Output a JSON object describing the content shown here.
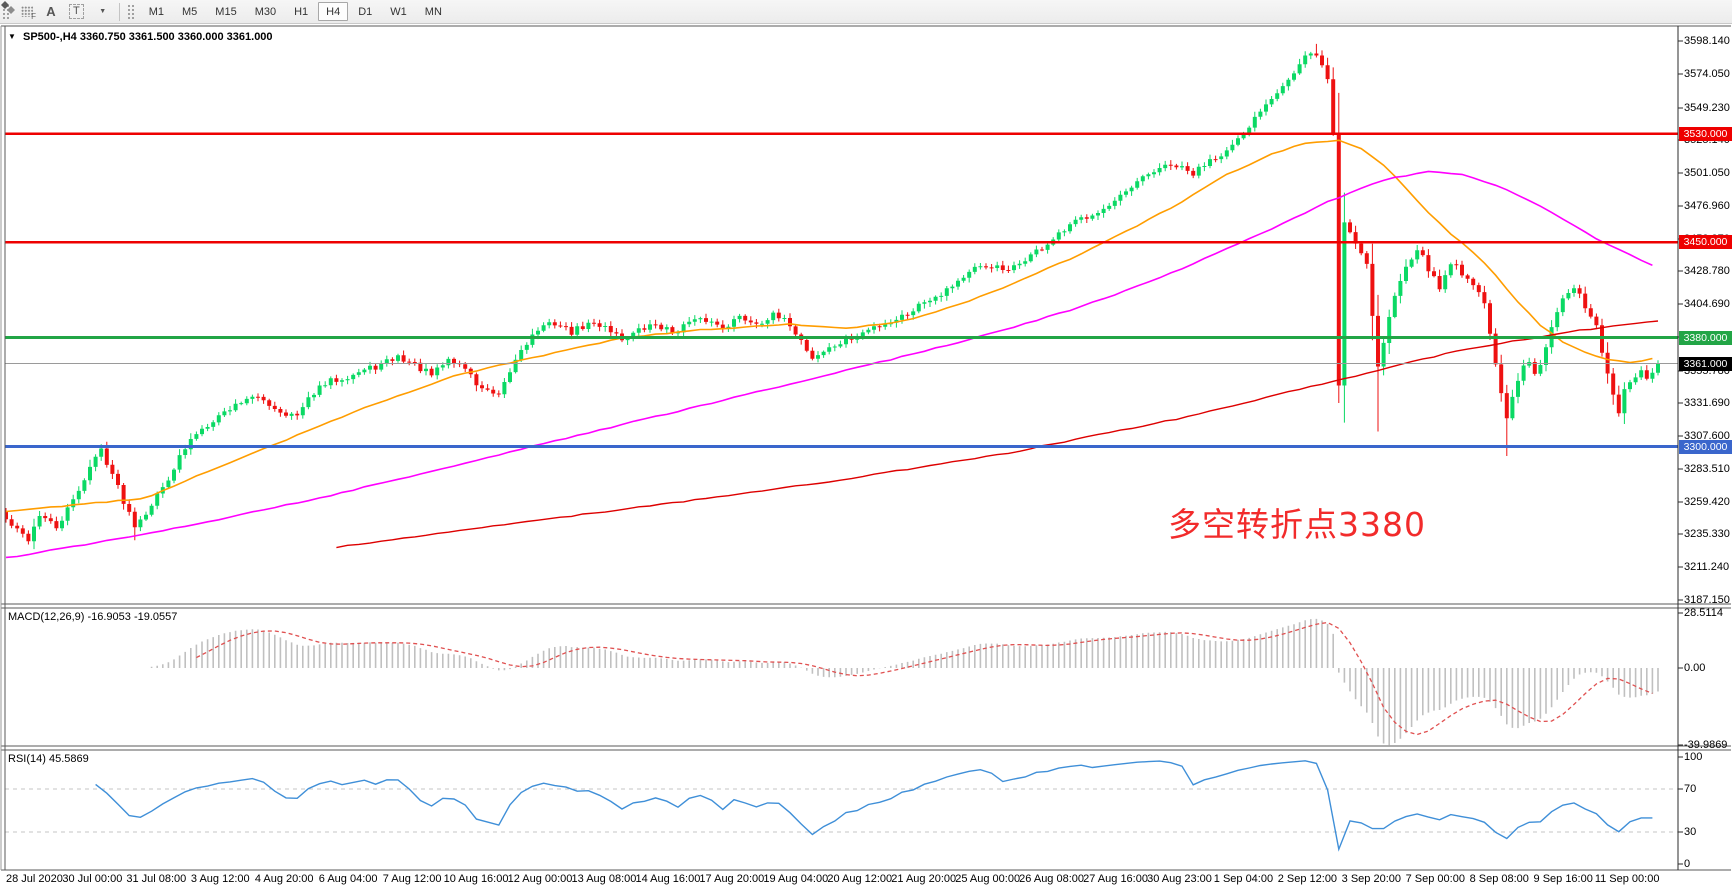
{
  "toolbar": {
    "tool_icons": [
      {
        "name": "fibo-grid-icon",
        "glyph": "F"
      },
      {
        "name": "text-label-icon",
        "glyph": "A"
      },
      {
        "name": "text-tool-icon",
        "glyph": "T"
      },
      {
        "name": "arrows-tool-icon",
        "glyph": ""
      }
    ],
    "dropdown_caret": "▼",
    "timeframes": [
      {
        "label": "M1",
        "selected": false
      },
      {
        "label": "M5",
        "selected": false
      },
      {
        "label": "M15",
        "selected": false
      },
      {
        "label": "M30",
        "selected": false
      },
      {
        "label": "H1",
        "selected": false
      },
      {
        "label": "H4",
        "selected": true
      },
      {
        "label": "D1",
        "selected": false
      },
      {
        "label": "W1",
        "selected": false
      },
      {
        "label": "MN",
        "selected": false
      }
    ]
  },
  "chart": {
    "symbol_dropdown_glyph": "▼",
    "symbol": "SP500-,H4",
    "ohlc_text": "3360.750 3361.500 3360.000 3361.000"
  },
  "panels": {
    "macd_header": "MACD(12,26,9) -16.9053 -19.0557",
    "rsi_header": "RSI(14) 45.5869",
    "macd_ticks": [
      {
        "t": "28.5114",
        "v": 28.5114
      },
      {
        "t": "0.00",
        "v": 0
      },
      {
        "t": "-39.9869",
        "v": -39.9869
      }
    ],
    "rsi_ticks": [
      {
        "t": "100",
        "v": 100
      },
      {
        "t": "70",
        "v": 70
      },
      {
        "t": "30",
        "v": 30
      },
      {
        "t": "0",
        "v": 0
      }
    ]
  },
  "price_axis": {
    "ticks": [
      3598.14,
      3574.05,
      3549.23,
      3525.14,
      3501.05,
      3476.96,
      3452.87,
      3428.78,
      3404.69,
      3380.6,
      3355.78,
      3331.69,
      3307.6,
      3283.51,
      3259.42,
      3235.33,
      3211.24,
      3187.15
    ]
  },
  "levels": [
    {
      "value": 3530,
      "label": "3530.000",
      "color": "#ee0000",
      "width": 2.5
    },
    {
      "value": 3450,
      "label": "3450.000",
      "color": "#ee0000",
      "width": 2.5
    },
    {
      "value": 3380,
      "label": "3380.000",
      "color": "#22a546",
      "width": 3
    },
    {
      "value": 3300,
      "label": "3300.000",
      "color": "#3a66cc",
      "width": 3
    }
  ],
  "current_price": {
    "value": 3361,
    "label": "3361.000",
    "line_color": "#9a9a9a",
    "badge_bg": "#000000"
  },
  "annotation": {
    "text": "多空转折点3380",
    "color": "#f22b2b"
  },
  "time_axis": {
    "labels": [
      "28 Jul 2020",
      "30 Jul 00:00",
      "31 Jul 08:00",
      "3 Aug 12:00",
      "4 Aug 20:00",
      "6 Aug 04:00",
      "7 Aug 12:00",
      "10 Aug 16:00",
      "12 Aug 00:00",
      "13 Aug 08:00",
      "14 Aug 16:00",
      "17 Aug 20:00",
      "19 Aug 04:00",
      "20 Aug 12:00",
      "21 Aug 20:00",
      "25 Aug 00:00",
      "26 Aug 08:00",
      "27 Aug 16:00",
      "30 Aug 23:00",
      "1 Sep 04:00",
      "2 Sep 12:00",
      "3 Sep 20:00",
      "7 Sep 00:00",
      "8 Sep 08:00",
      "9 Sep 16:00",
      "11 Sep 00:00"
    ]
  },
  "chart_data": {
    "type": "candlestick",
    "symbol": "SP500-",
    "timeframe": "H4",
    "current_bar": {
      "open": 3360.75,
      "high": 3361.5,
      "low": 3360.0,
      "close": 3361.0
    },
    "price_range": [
      3187.15,
      3598.14
    ],
    "horizontal_levels": [
      3530,
      3450,
      3380,
      3300
    ],
    "candle_count": 296,
    "colors": {
      "bull": "#0bd964",
      "bear": "#ee1111"
    },
    "close_path_anchors": [
      [
        0,
        3246
      ],
      [
        2,
        3238
      ],
      [
        4,
        3232
      ],
      [
        6,
        3250
      ],
      [
        9,
        3240
      ],
      [
        12,
        3260
      ],
      [
        15,
        3285
      ],
      [
        17,
        3298
      ],
      [
        19,
        3280
      ],
      [
        21,
        3260
      ],
      [
        23,
        3243
      ],
      [
        25,
        3252
      ],
      [
        28,
        3270
      ],
      [
        31,
        3292
      ],
      [
        34,
        3310
      ],
      [
        37,
        3320
      ],
      [
        40,
        3328
      ],
      [
        43,
        3336
      ],
      [
        46,
        3334
      ],
      [
        49,
        3326
      ],
      [
        52,
        3322
      ],
      [
        55,
        3340
      ],
      [
        58,
        3348
      ],
      [
        61,
        3352
      ],
      [
        64,
        3356
      ],
      [
        67,
        3360
      ],
      [
        70,
        3366
      ],
      [
        73,
        3360
      ],
      [
        76,
        3352
      ],
      [
        79,
        3364
      ],
      [
        82,
        3358
      ],
      [
        84,
        3346
      ],
      [
        86,
        3340
      ],
      [
        88,
        3336
      ],
      [
        90,
        3355
      ],
      [
        92,
        3372
      ],
      [
        95,
        3386
      ],
      [
        98,
        3391
      ],
      [
        101,
        3384
      ],
      [
        104,
        3390
      ],
      [
        107,
        3389
      ],
      [
        110,
        3379
      ],
      [
        113,
        3385
      ],
      [
        116,
        3390
      ],
      [
        119,
        3384
      ],
      [
        122,
        3391
      ],
      [
        125,
        3393
      ],
      [
        128,
        3388
      ],
      [
        131,
        3395
      ],
      [
        134,
        3391
      ],
      [
        137,
        3396
      ],
      [
        140,
        3390
      ],
      [
        142,
        3378
      ],
      [
        144,
        3365
      ],
      [
        146,
        3370
      ],
      [
        149,
        3376
      ],
      [
        152,
        3381
      ],
      [
        155,
        3388
      ],
      [
        158,
        3392
      ],
      [
        161,
        3398
      ],
      [
        164,
        3407
      ],
      [
        167,
        3413
      ],
      [
        170,
        3422
      ],
      [
        173,
        3430
      ],
      [
        176,
        3433
      ],
      [
        179,
        3428
      ],
      [
        182,
        3438
      ],
      [
        185,
        3446
      ],
      [
        188,
        3455
      ],
      [
        191,
        3465
      ],
      [
        194,
        3472
      ],
      [
        197,
        3476
      ],
      [
        200,
        3486
      ],
      [
        203,
        3497
      ],
      [
        206,
        3505
      ],
      [
        209,
        3506
      ],
      [
        212,
        3500
      ],
      [
        215,
        3512
      ],
      [
        218,
        3517
      ],
      [
        221,
        3528
      ],
      [
        224,
        3548
      ],
      [
        227,
        3562
      ],
      [
        230,
        3574
      ],
      [
        232,
        3586
      ],
      [
        234,
        3589
      ],
      [
        236,
        3570
      ],
      [
        237,
        3530
      ],
      [
        238,
        3345
      ],
      [
        239,
        3465
      ],
      [
        240,
        3458
      ],
      [
        241,
        3450
      ],
      [
        242,
        3443
      ],
      [
        243,
        3436
      ],
      [
        244,
        3396
      ],
      [
        245,
        3360
      ],
      [
        246,
        3376
      ],
      [
        247,
        3395
      ],
      [
        248,
        3410
      ],
      [
        250,
        3434
      ],
      [
        252,
        3446
      ],
      [
        254,
        3431
      ],
      [
        256,
        3416
      ],
      [
        258,
        3436
      ],
      [
        260,
        3428
      ],
      [
        262,
        3420
      ],
      [
        264,
        3405
      ],
      [
        265,
        3385
      ],
      [
        266,
        3358
      ],
      [
        267,
        3338
      ],
      [
        268,
        3320
      ],
      [
        269,
        3335
      ],
      [
        270,
        3348
      ],
      [
        271,
        3358
      ],
      [
        272,
        3362
      ],
      [
        273,
        3355
      ],
      [
        274,
        3362
      ],
      [
        275,
        3375
      ],
      [
        276,
        3390
      ],
      [
        277,
        3400
      ],
      [
        278,
        3408
      ],
      [
        280,
        3416
      ],
      [
        282,
        3404
      ],
      [
        283,
        3396
      ],
      [
        284,
        3390
      ],
      [
        285,
        3370
      ],
      [
        286,
        3352
      ],
      [
        287,
        3338
      ],
      [
        288,
        3326
      ],
      [
        289,
        3340
      ],
      [
        290,
        3345
      ],
      [
        291,
        3352
      ],
      [
        292,
        3356
      ],
      [
        293,
        3348
      ],
      [
        294,
        3352
      ],
      [
        295,
        3361
      ]
    ],
    "wick_overrides": [
      {
        "i": 23,
        "low": 3231
      },
      {
        "i": 234,
        "high": 3596
      },
      {
        "i": 238,
        "high": 3560,
        "low": 3332
      },
      {
        "i": 245,
        "low": 3311
      },
      {
        "i": 268,
        "low": 3293
      },
      {
        "i": 288,
        "low": 3322
      }
    ],
    "moving_averages": [
      {
        "name": "fast",
        "color": "#ff9d00",
        "width": 1.6,
        "anchors": [
          [
            0,
            3252
          ],
          [
            15,
            3258
          ],
          [
            25,
            3262
          ],
          [
            35,
            3280
          ],
          [
            50,
            3305
          ],
          [
            65,
            3330
          ],
          [
            80,
            3352
          ],
          [
            95,
            3366
          ],
          [
            110,
            3380
          ],
          [
            125,
            3386
          ],
          [
            140,
            3390
          ],
          [
            150,
            3387
          ],
          [
            160,
            3392
          ],
          [
            170,
            3404
          ],
          [
            180,
            3420
          ],
          [
            190,
            3438
          ],
          [
            200,
            3458
          ],
          [
            210,
            3480
          ],
          [
            218,
            3500
          ],
          [
            226,
            3515
          ],
          [
            232,
            3523
          ],
          [
            238,
            3525
          ],
          [
            242,
            3519
          ],
          [
            246,
            3507
          ],
          [
            250,
            3490
          ],
          [
            254,
            3472
          ],
          [
            258,
            3456
          ],
          [
            262,
            3443
          ],
          [
            266,
            3426
          ],
          [
            270,
            3406
          ],
          [
            274,
            3389
          ],
          [
            278,
            3377
          ],
          [
            282,
            3369
          ],
          [
            286,
            3364
          ],
          [
            290,
            3362
          ],
          [
            295,
            3365
          ]
        ]
      },
      {
        "name": "medium",
        "color": "#ff00ff",
        "width": 1.6,
        "anchors": [
          [
            0,
            3218
          ],
          [
            20,
            3232
          ],
          [
            40,
            3248
          ],
          [
            60,
            3266
          ],
          [
            80,
            3286
          ],
          [
            100,
            3306
          ],
          [
            120,
            3326
          ],
          [
            140,
            3346
          ],
          [
            160,
            3366
          ],
          [
            175,
            3382
          ],
          [
            190,
            3400
          ],
          [
            205,
            3422
          ],
          [
            215,
            3440
          ],
          [
            225,
            3458
          ],
          [
            235,
            3478
          ],
          [
            242,
            3490
          ],
          [
            248,
            3498
          ],
          [
            254,
            3502
          ],
          [
            260,
            3500
          ],
          [
            266,
            3492
          ],
          [
            272,
            3481
          ],
          [
            278,
            3467
          ],
          [
            284,
            3453
          ],
          [
            289,
            3443
          ],
          [
            295,
            3431
          ]
        ]
      },
      {
        "name": "slow",
        "color": "#dd0000",
        "width": 1.4,
        "anchors": [
          [
            59,
            3226
          ],
          [
            90,
            3243
          ],
          [
            120,
            3259
          ],
          [
            150,
            3276
          ],
          [
            180,
            3296
          ],
          [
            210,
            3321
          ],
          [
            230,
            3341
          ],
          [
            245,
            3356
          ],
          [
            258,
            3369
          ],
          [
            270,
            3378
          ],
          [
            282,
            3386
          ],
          [
            295,
            3392
          ]
        ]
      }
    ],
    "macd": {
      "params": [
        12,
        26,
        9
      ],
      "value": -16.9053,
      "signal_value": -19.0557,
      "display_range": [
        -39.9869,
        28.5114
      ],
      "histogram_color": "#c0c0c0",
      "signal_color": "#e05050"
    },
    "rsi": {
      "period": 14,
      "value": 45.5869,
      "levels": [
        70,
        30
      ],
      "range": [
        0,
        100
      ],
      "line_color": "#3f8fd8",
      "level_color": "#c4c4c4"
    }
  }
}
